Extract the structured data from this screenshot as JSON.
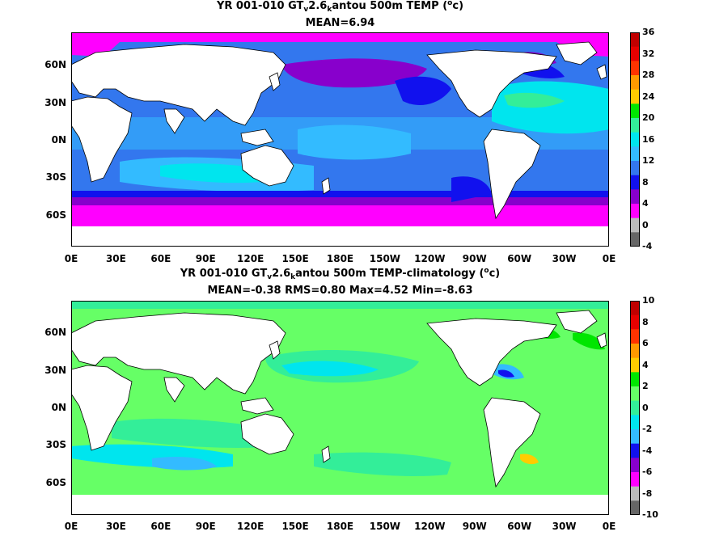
{
  "panels": [
    {
      "title_parts": {
        "pre": "YR 001-010 GT",
        "sub1": "v",
        "mid": "2.6",
        "sub2": "k",
        "post": "antou 500m TEMP (",
        "sup": "o",
        "end": "c)"
      },
      "stats": "MEAN=6.94",
      "colorbar": {
        "ticks": [
          "36",
          "32",
          "28",
          "24",
          "20",
          "16",
          "12",
          "8",
          "4",
          "0",
          "-4"
        ],
        "colors": [
          "#c00000",
          "#e60000",
          "#ff3300",
          "#ff9900",
          "#ffcc00",
          "#00e600",
          "#33ee99",
          "#00e5ee",
          "#33bbff",
          "#3377ee",
          "#1111ee",
          "#8800cc",
          "#ff00ff",
          "#bbbbbb",
          "#666666"
        ]
      }
    },
    {
      "title_parts": {
        "pre": "YR 001-010 GT",
        "sub1": "v",
        "mid": "2.6",
        "sub2": "k",
        "post": "antou 500m TEMP-climatology (",
        "sup": "o",
        "end": "c)"
      },
      "stats": "MEAN=-0.38   RMS=0.80   Max=4.52   Min=-8.63",
      "colorbar": {
        "ticks": [
          "10",
          "8",
          "6",
          "4",
          "2",
          "0",
          "-2",
          "-4",
          "-6",
          "-8",
          "-10"
        ],
        "colors": [
          "#c00000",
          "#e60000",
          "#ff3300",
          "#ff9900",
          "#ffcc00",
          "#00e600",
          "#66ff66",
          "#33ee99",
          "#00e5ee",
          "#33bbff",
          "#1111ee",
          "#8800cc",
          "#ff00ff",
          "#bbbbbb",
          "#666666"
        ]
      }
    }
  ],
  "lat_labels": [
    "60N",
    "30N",
    "0N",
    "30S",
    "60S"
  ],
  "lon_labels": [
    "0E",
    "30E",
    "60E",
    "90E",
    "120E",
    "150E",
    "180E",
    "150W",
    "120W",
    "90W",
    "60W",
    "30W",
    "0E"
  ]
}
